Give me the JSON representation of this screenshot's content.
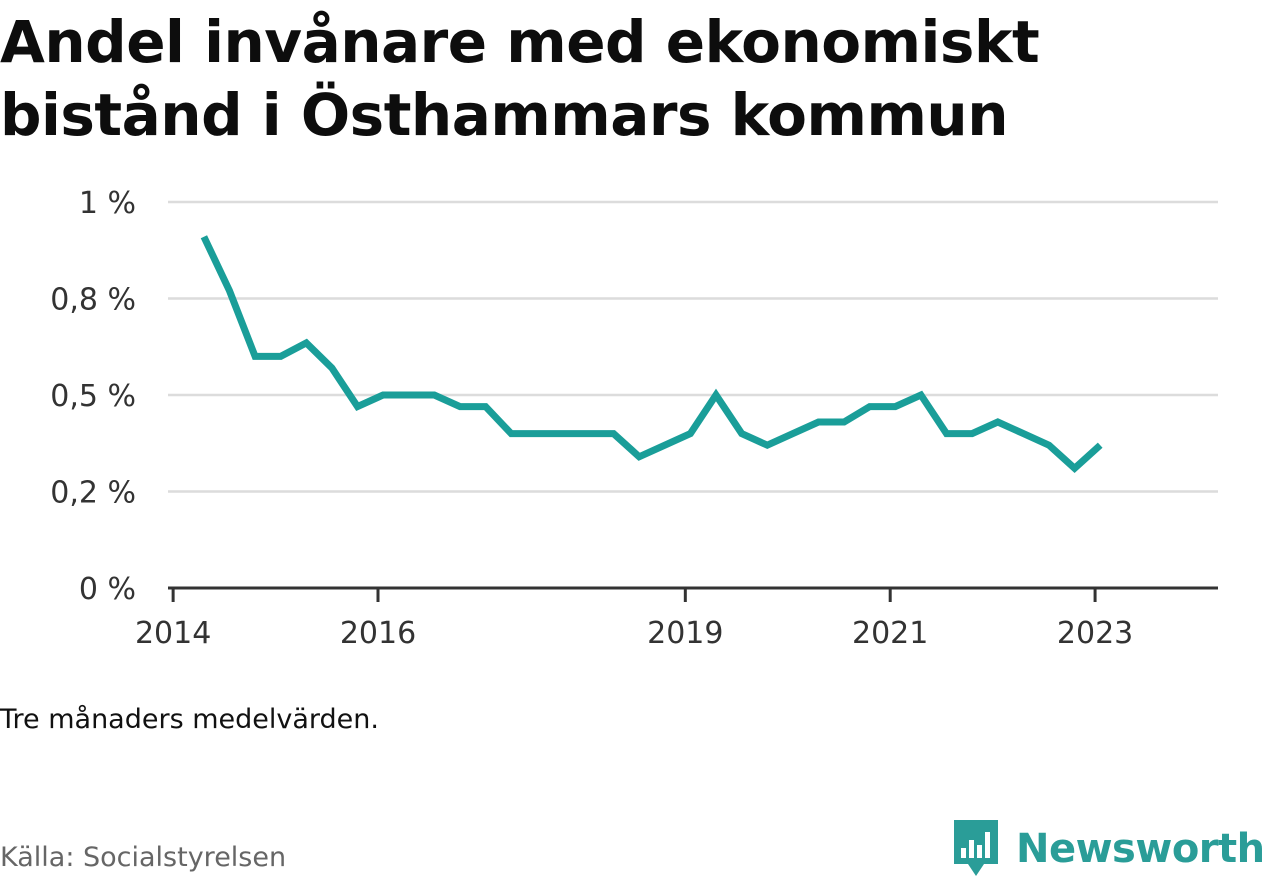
{
  "title": "Andel invånare med ekonomiskt bistånd i Östhammars kommun",
  "note": "Tre månaders medelvärden.",
  "source": "Källa: Socialstyrelsen",
  "brand": {
    "name": "Newsworthy",
    "icon": "bar-chart-badge-icon",
    "color": "#2a9d98"
  },
  "chart_data": {
    "type": "line",
    "color": "#1a9e99",
    "grid": true,
    "ylim": [
      0,
      1
    ],
    "y_ticks": [
      {
        "value": 0,
        "label": "0 %"
      },
      {
        "value": 0.25,
        "label": "0,2 %"
      },
      {
        "value": 0.5,
        "label": "0,5 %"
      },
      {
        "value": 0.75,
        "label": "0,8 %"
      },
      {
        "value": 1,
        "label": "1 %"
      }
    ],
    "xlim": [
      2013.95,
      2024.2
    ],
    "x_ticks": [
      {
        "value": 2014,
        "label": "2014"
      },
      {
        "value": 2016,
        "label": "2016"
      },
      {
        "value": 2019,
        "label": "2019"
      },
      {
        "value": 2021,
        "label": "2021"
      },
      {
        "value": 2023,
        "label": "2023"
      }
    ],
    "series": [
      {
        "x": [
          2014.3,
          2014.55,
          2014.8,
          2015.05,
          2015.3,
          2015.55,
          2015.8,
          2016.05,
          2016.3,
          2016.55,
          2016.8,
          2017.05,
          2017.3,
          2017.55,
          2017.8,
          2018.05,
          2018.3,
          2018.55,
          2018.8,
          2019.05,
          2019.3,
          2019.55,
          2019.8,
          2020.05,
          2020.3,
          2020.55,
          2020.8,
          2021.05,
          2021.3,
          2021.55,
          2021.8,
          2022.05,
          2022.3,
          2022.55,
          2022.8,
          2023.05
        ],
        "values": [
          0.91,
          0.77,
          0.6,
          0.6,
          0.635,
          0.57,
          0.47,
          0.5,
          0.5,
          0.5,
          0.47,
          0.47,
          0.4,
          0.4,
          0.4,
          0.4,
          0.4,
          0.34,
          0.37,
          0.4,
          0.5,
          0.4,
          0.37,
          0.4,
          0.43,
          0.43,
          0.47,
          0.47,
          0.5,
          0.4,
          0.4,
          0.43,
          0.4,
          0.37,
          0.31,
          0.37
        ]
      }
    ]
  }
}
